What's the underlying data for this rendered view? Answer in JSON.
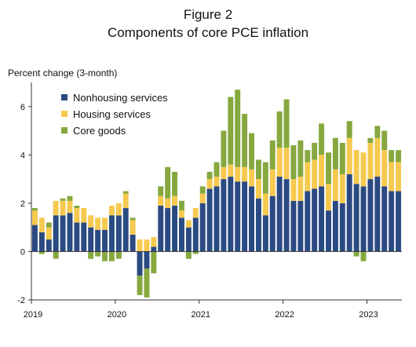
{
  "figure_label": "Figure 2",
  "title": "Components of core PCE inflation",
  "ylabel": "Percent change (3-month)",
  "colors": {
    "nonhousing": "#2b4a82",
    "housing": "#f6c94f",
    "goods": "#86a83f"
  },
  "chart_data": {
    "type": "bar",
    "stacked": true,
    "title": "Components of core PCE inflation",
    "ylabel": "Percent change (3-month)",
    "ylim": [
      -2,
      7
    ],
    "yticks": [
      -2,
      0,
      2,
      4,
      6
    ],
    "xticks": [
      "2019",
      "2020",
      "2021",
      "2022",
      "2023"
    ],
    "legend_position": "top-left",
    "categories": [
      "2019-01",
      "2019-02",
      "2019-03",
      "2019-04",
      "2019-05",
      "2019-06",
      "2019-07",
      "2019-08",
      "2019-09",
      "2019-10",
      "2019-11",
      "2019-12",
      "2020-01",
      "2020-02",
      "2020-03",
      "2020-04",
      "2020-05",
      "2020-06",
      "2020-07",
      "2020-08",
      "2020-09",
      "2020-10",
      "2020-11",
      "2020-12",
      "2021-01",
      "2021-02",
      "2021-03",
      "2021-04",
      "2021-05",
      "2021-06",
      "2021-07",
      "2021-08",
      "2021-09",
      "2021-10",
      "2021-11",
      "2021-12",
      "2022-01",
      "2022-02",
      "2022-03",
      "2022-04",
      "2022-05",
      "2022-06",
      "2022-07",
      "2022-08",
      "2022-09",
      "2022-10",
      "2022-11",
      "2022-12",
      "2023-01",
      "2023-02",
      "2023-03",
      "2023-04",
      "2023-05"
    ],
    "series": [
      {
        "name": "Nonhousing services",
        "values": [
          1.1,
          0.8,
          0.5,
          1.5,
          1.5,
          1.6,
          1.2,
          1.2,
          1.0,
          0.9,
          0.9,
          1.5,
          1.5,
          1.8,
          0.7,
          -1.0,
          -0.7,
          0.2,
          1.9,
          1.8,
          1.9,
          1.4,
          1.0,
          1.4,
          2.0,
          2.6,
          2.7,
          3.0,
          3.1,
          2.9,
          2.9,
          2.7,
          2.2,
          1.5,
          2.3,
          3.1,
          3.0,
          2.1,
          2.1,
          2.5,
          2.6,
          2.7,
          1.7,
          2.1,
          2.0,
          3.2,
          2.8,
          2.7,
          3.0,
          3.1,
          2.7,
          2.5,
          2.5
        ]
      },
      {
        "name": "Housing services",
        "values": [
          0.6,
          0.6,
          0.5,
          0.6,
          0.6,
          0.5,
          0.6,
          0.6,
          0.5,
          0.5,
          0.5,
          0.4,
          0.5,
          0.6,
          0.6,
          0.5,
          0.5,
          0.4,
          0.4,
          0.4,
          0.4,
          0.3,
          0.3,
          0.4,
          0.4,
          0.4,
          0.4,
          0.5,
          0.5,
          0.6,
          0.6,
          0.7,
          0.8,
          0.9,
          1.1,
          1.2,
          1.3,
          0.9,
          1.0,
          1.2,
          1.2,
          1.3,
          1.1,
          1.3,
          1.2,
          1.5,
          1.4,
          1.4,
          1.5,
          1.6,
          1.5,
          1.2,
          1.2
        ]
      },
      {
        "name": "Core goods",
        "values": [
          0.1,
          -0.1,
          0.2,
          -0.3,
          0.1,
          0.2,
          0.1,
          0.0,
          -0.3,
          -0.2,
          -0.4,
          -0.4,
          -0.3,
          0.1,
          0.1,
          -0.8,
          -1.2,
          -0.9,
          0.4,
          1.3,
          1.0,
          0.4,
          -0.3,
          -0.1,
          0.3,
          0.3,
          0.6,
          1.5,
          2.8,
          3.2,
          2.2,
          1.5,
          0.8,
          1.3,
          1.2,
          1.5,
          2.0,
          1.4,
          1.5,
          0.5,
          0.7,
          1.3,
          1.3,
          1.3,
          1.3,
          0.7,
          -0.2,
          -0.4,
          0.2,
          0.5,
          0.8,
          0.5,
          0.5
        ]
      }
    ]
  }
}
